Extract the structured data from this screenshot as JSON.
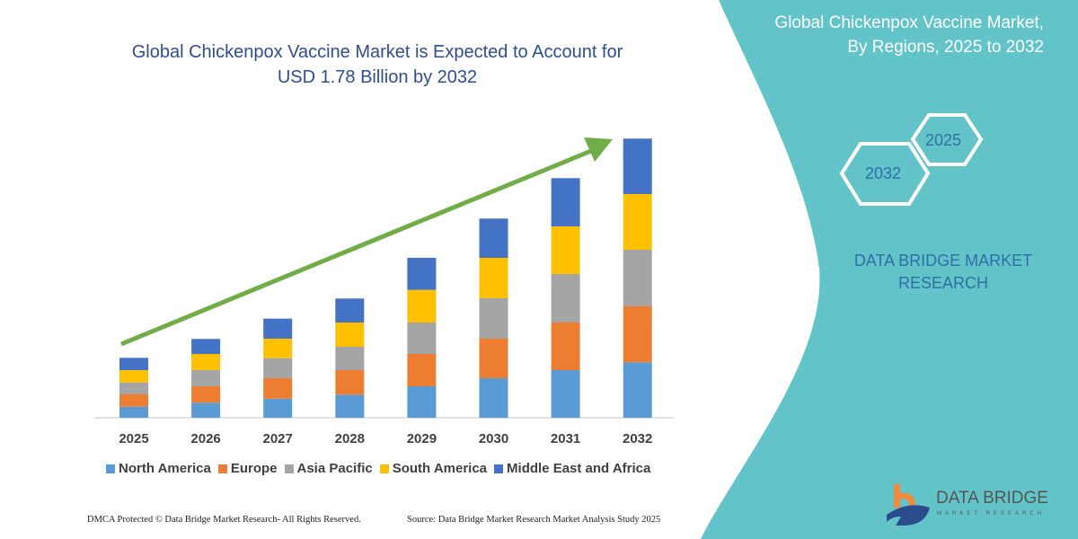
{
  "header": {
    "title_line1": "Global Chickenpox Vaccine Market is Expected to Account for",
    "title_line2": "USD 1.78 Billion by 2032"
  },
  "side_panel": {
    "title_line1": "Global Chickenpox Vaccine Market,",
    "title_line2": "By Regions, 2025 to 2032",
    "hex_start": "2025",
    "hex_end": "2032",
    "brand_line1": "DATA BRIDGE MARKET",
    "brand_line2": "RESEARCH",
    "background_color": "#62C4C9"
  },
  "logo": {
    "name": "DATA BRIDGE",
    "tagline": "MARKET RESEARCH"
  },
  "footer": {
    "copyright": "DMCA Protected © Data Bridge Market Research-  All Rights Reserved.",
    "source": "Source: Data Bridge Market Research  Market Analysis Study 2025"
  },
  "chart_data": {
    "type": "bar",
    "stacked": true,
    "categories": [
      "2025",
      "2026",
      "2027",
      "2028",
      "2029",
      "2030",
      "2031",
      "2032"
    ],
    "series": [
      {
        "name": "North America",
        "color": "#5B9BD5",
        "values": [
          12.3,
          16.7,
          21.3,
          25.7,
          35,
          44,
          53,
          61.7
        ]
      },
      {
        "name": "Europe",
        "color": "#ED7D31",
        "values": [
          13.7,
          18.3,
          22.7,
          27.3,
          36,
          44,
          53,
          62.3
        ]
      },
      {
        "name": "Asia Pacific",
        "color": "#A5A5A5",
        "values": [
          13.3,
          18,
          22.3,
          26,
          35,
          45,
          54,
          63
        ]
      },
      {
        "name": "South America",
        "color": "#FFC000",
        "values": [
          13.7,
          18,
          21.7,
          27,
          36.3,
          45,
          53,
          62
        ]
      },
      {
        "name": "Middle East and Africa",
        "color": "#4472C4",
        "values": [
          13.7,
          16.7,
          22.3,
          26.7,
          35.7,
          43.7,
          53.7,
          61.7
        ]
      }
    ],
    "y_axis_shown": false,
    "grid": false,
    "legend_position": "bottom",
    "trend_arrow_color": "#70AD47"
  }
}
